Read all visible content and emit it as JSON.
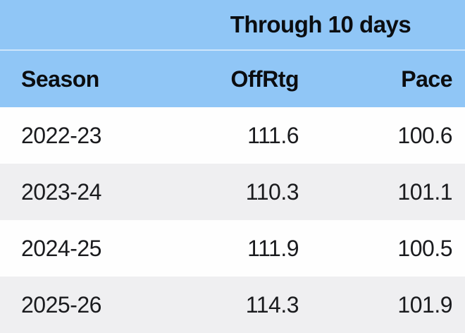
{
  "table": {
    "banner": "Through 10 days",
    "columns": {
      "season": "Season",
      "offrtg": "OffRtg",
      "pace": "Pace"
    },
    "rows": [
      {
        "season": "2022-23",
        "offrtg": "111.6",
        "pace": "100.6"
      },
      {
        "season": "2023-24",
        "offrtg": "110.3",
        "pace": "101.1"
      },
      {
        "season": "2024-25",
        "offrtg": "111.9",
        "pace": "100.5"
      },
      {
        "season": "2025-26",
        "offrtg": "114.3",
        "pace": "101.9"
      }
    ],
    "colors": {
      "header_blue": "#90c6f6",
      "row_alt_gray": "#efeff1",
      "row_white": "#fefefe",
      "text": "#1a1b1e"
    }
  }
}
